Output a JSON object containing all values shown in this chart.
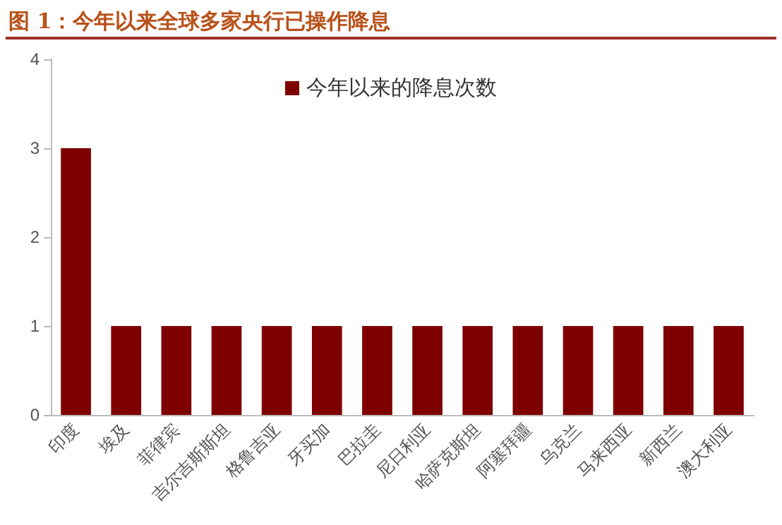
{
  "chart_data": {
    "type": "bar",
    "title": "图 1：今年以来全球多家央行已操作降息",
    "categories": [
      "印度",
      "埃及",
      "菲律宾",
      "吉尔吉斯斯坦",
      "格鲁吉亚",
      "牙买加",
      "巴拉圭",
      "尼日利亚",
      "哈萨克斯坦",
      "阿塞拜疆",
      "乌克兰",
      "马来西亚",
      "新西兰",
      "澳大利亚"
    ],
    "series": [
      {
        "name": "今年以来的降息次数",
        "color": "#7f0000",
        "values": [
          3,
          1,
          1,
          1,
          1,
          1,
          1,
          1,
          1,
          1,
          1,
          1,
          1,
          1
        ]
      }
    ],
    "ylim": [
      0,
      4
    ],
    "yticks": [
      0,
      1,
      2,
      3,
      4
    ],
    "grid": false,
    "legend": "top"
  }
}
